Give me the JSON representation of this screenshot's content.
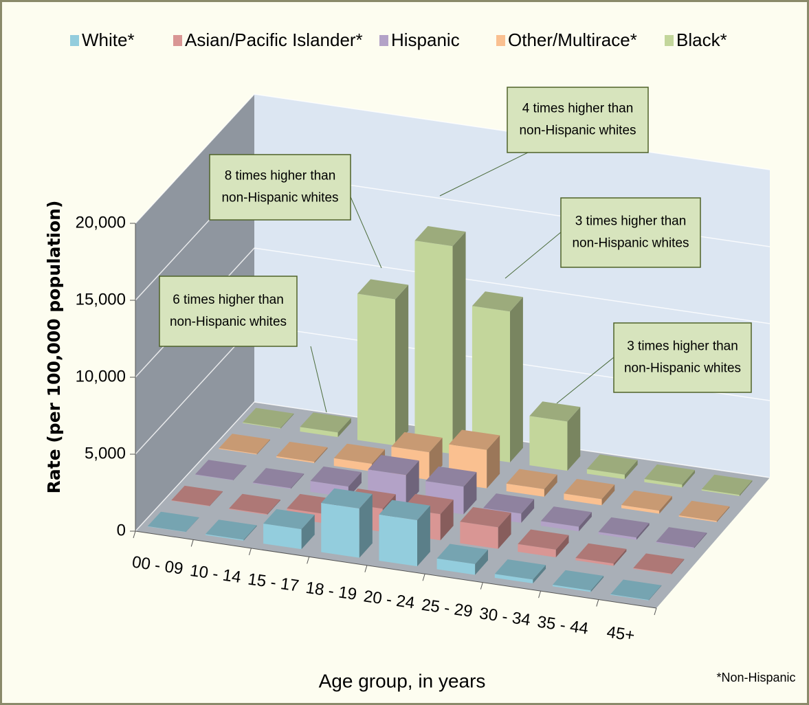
{
  "chart_data": {
    "type": "bar3d",
    "y_label": "Rate (per 100,000 population)",
    "x_label": "Age group, in years",
    "footnote": "*Non-Hispanic",
    "categories": [
      "00 - 09",
      "10 - 14",
      "15 - 17",
      "18 - 19",
      "20 - 24",
      "25 - 29",
      "30 - 34",
      "35 - 44",
      "45+"
    ],
    "series": [
      {
        "name": "White*",
        "color": "#93cddd",
        "values": [
          20,
          60,
          1300,
          3200,
          3000,
          700,
          250,
          100,
          40
        ]
      },
      {
        "name": "Asian/Pacific Islander*",
        "color": "#d99694",
        "values": [
          30,
          50,
          600,
          1500,
          1700,
          1400,
          500,
          150,
          50
        ]
      },
      {
        "name": "Hispanic",
        "color": "#b3a2c7",
        "values": [
          30,
          50,
          700,
          2000,
          1800,
          600,
          300,
          150,
          60
        ]
      },
      {
        "name": "Other/Multirace*",
        "color": "#fac090",
        "values": [
          50,
          80,
          500,
          1800,
          2500,
          500,
          400,
          200,
          80
        ]
      },
      {
        "name": "Black*",
        "color": "#c3d69b",
        "values": [
          50,
          300,
          9500,
          13500,
          9800,
          3200,
          300,
          200,
          80
        ]
      }
    ],
    "ylim": [
      0,
      20000
    ],
    "yticks": [
      0,
      {
        "value": 5000,
        "label": "5,000"
      },
      {
        "value": 10000,
        "label": "10,000"
      },
      {
        "value": 15000,
        "label": "15,000"
      },
      {
        "value": 20000,
        "label": "20,000"
      }
    ],
    "grid": true,
    "legend": "top",
    "annotations": [
      {
        "lines": [
          "6 times higher than",
          "non-Hispanic whites"
        ]
      },
      {
        "lines": [
          "8 times higher than",
          "non-Hispanic whites"
        ]
      },
      {
        "lines": [
          "4 times higher than",
          "non-Hispanic whites"
        ]
      },
      {
        "lines": [
          "3 times higher than",
          "non-Hispanic whites"
        ]
      },
      {
        "lines": [
          "3 times higher than",
          "non-Hispanic whites"
        ]
      }
    ]
  }
}
